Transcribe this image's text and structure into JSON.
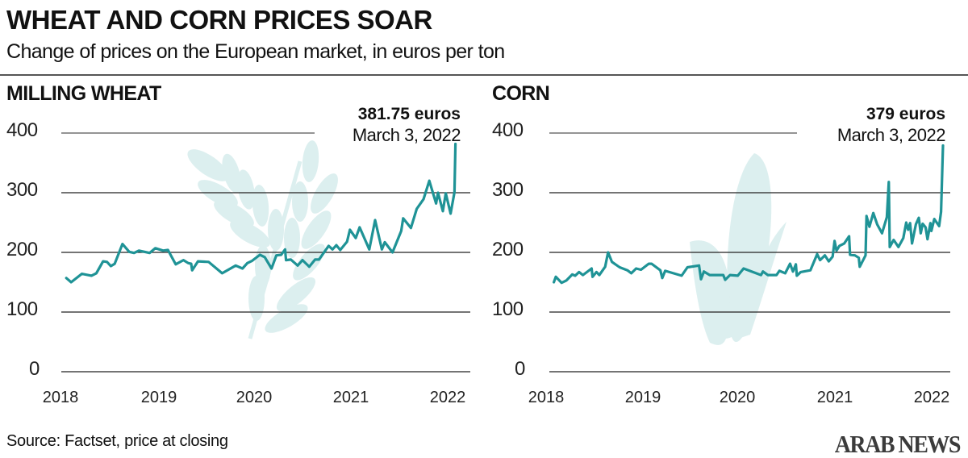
{
  "header": {
    "title": "WHEAT AND CORN PRICES SOAR",
    "subtitle": "Change of prices on the European market, in euros per ton"
  },
  "footer": {
    "source": "Source: Factset, price at closing",
    "logo": "ARAB NEWS"
  },
  "colors": {
    "line": "#1f9396",
    "watermark": "#dcefef",
    "grid": "#222222"
  },
  "chart_data": [
    {
      "type": "line",
      "title": "MILLING WHEAT",
      "ylabel": "euros per ton",
      "ylim": [
        0,
        400
      ],
      "yticks": [
        "0",
        "100",
        "200",
        "300",
        "400"
      ],
      "xticks": [
        "2018",
        "2019",
        "2020",
        "2021",
        "2022"
      ],
      "x_unit": "years since start of 2018",
      "annotation": {
        "value": "381.75 euros",
        "date": "March 3, 2022"
      },
      "watermark_icon": "wheat-icon",
      "points": [
        [
          0.06,
          157
        ],
        [
          0.11,
          150
        ],
        [
          0.22,
          164
        ],
        [
          0.32,
          161
        ],
        [
          0.37,
          165
        ],
        [
          0.44,
          185
        ],
        [
          0.48,
          184
        ],
        [
          0.52,
          177
        ],
        [
          0.56,
          181
        ],
        [
          0.64,
          214
        ],
        [
          0.71,
          201
        ],
        [
          0.76,
          199
        ],
        [
          0.81,
          203
        ],
        [
          0.92,
          199
        ],
        [
          0.98,
          207
        ],
        [
          1.06,
          203
        ],
        [
          1.11,
          204
        ],
        [
          1.19,
          180
        ],
        [
          1.27,
          187
        ],
        [
          1.32,
          182
        ],
        [
          1.35,
          181
        ],
        [
          1.36,
          170
        ],
        [
          1.42,
          185
        ],
        [
          1.53,
          184
        ],
        [
          1.67,
          165
        ],
        [
          1.81,
          178
        ],
        [
          1.88,
          173
        ],
        [
          1.93,
          182
        ],
        [
          1.98,
          186
        ],
        [
          2.06,
          196
        ],
        [
          2.11,
          192
        ],
        [
          2.18,
          173
        ],
        [
          2.23,
          195
        ],
        [
          2.28,
          196
        ],
        [
          2.32,
          205
        ],
        [
          2.33,
          187
        ],
        [
          2.38,
          188
        ],
        [
          2.45,
          178
        ],
        [
          2.5,
          187
        ],
        [
          2.57,
          176
        ],
        [
          2.63,
          188
        ],
        [
          2.67,
          188
        ],
        [
          2.77,
          211
        ],
        [
          2.81,
          205
        ],
        [
          2.85,
          212
        ],
        [
          2.89,
          204
        ],
        [
          2.96,
          218
        ],
        [
          2.99,
          238
        ],
        [
          3.05,
          224
        ],
        [
          3.09,
          242
        ],
        [
          3.19,
          205
        ],
        [
          3.25,
          254
        ],
        [
          3.32,
          205
        ],
        [
          3.35,
          217
        ],
        [
          3.43,
          200
        ],
        [
          3.52,
          236
        ],
        [
          3.54,
          257
        ],
        [
          3.62,
          241
        ],
        [
          3.68,
          273
        ],
        [
          3.75,
          289
        ],
        [
          3.81,
          320
        ],
        [
          3.88,
          282
        ],
        [
          3.9,
          300
        ],
        [
          3.95,
          269
        ],
        [
          3.98,
          299
        ],
        [
          4.03,
          265
        ],
        [
          4.07,
          301
        ],
        [
          4.08,
          381.75
        ]
      ]
    },
    {
      "type": "line",
      "title": "CORN",
      "ylabel": "euros per ton",
      "ylim": [
        0,
        400
      ],
      "yticks": [
        "0",
        "100",
        "200",
        "300",
        "400"
      ],
      "xticks": [
        "2018",
        "2019",
        "2020",
        "2021",
        "2022"
      ],
      "x_unit": "years since start of 2018",
      "annotation": {
        "value": "379 euros",
        "date": "March 3, 2022"
      },
      "watermark_icon": "corn-icon",
      "points": [
        [
          0.08,
          150
        ],
        [
          0.1,
          159
        ],
        [
          0.16,
          149
        ],
        [
          0.21,
          153
        ],
        [
          0.27,
          163
        ],
        [
          0.3,
          161
        ],
        [
          0.34,
          167
        ],
        [
          0.38,
          162
        ],
        [
          0.47,
          173
        ],
        [
          0.48,
          159
        ],
        [
          0.52,
          167
        ],
        [
          0.55,
          162
        ],
        [
          0.61,
          176
        ],
        [
          0.64,
          200
        ],
        [
          0.68,
          184
        ],
        [
          0.76,
          175
        ],
        [
          0.84,
          170
        ],
        [
          0.88,
          165
        ],
        [
          0.93,
          173
        ],
        [
          0.98,
          171
        ],
        [
          1.06,
          181
        ],
        [
          1.09,
          181
        ],
        [
          1.18,
          170
        ],
        [
          1.2,
          157
        ],
        [
          1.23,
          169
        ],
        [
          1.4,
          161
        ],
        [
          1.46,
          175
        ],
        [
          1.58,
          178
        ],
        [
          1.6,
          155
        ],
        [
          1.63,
          168
        ],
        [
          1.69,
          162
        ],
        [
          1.83,
          162
        ],
        [
          1.85,
          154
        ],
        [
          1.9,
          162
        ],
        [
          1.98,
          161
        ],
        [
          2.04,
          173
        ],
        [
          2.22,
          162
        ],
        [
          2.24,
          168
        ],
        [
          2.29,
          162
        ],
        [
          2.38,
          162
        ],
        [
          2.41,
          169
        ],
        [
          2.47,
          165
        ],
        [
          2.52,
          181
        ],
        [
          2.55,
          168
        ],
        [
          2.58,
          180
        ],
        [
          2.59,
          161
        ],
        [
          2.63,
          167
        ],
        [
          2.73,
          170
        ],
        [
          2.8,
          197
        ],
        [
          2.83,
          187
        ],
        [
          2.88,
          195
        ],
        [
          2.92,
          185
        ],
        [
          2.96,
          193
        ],
        [
          2.98,
          219
        ],
        [
          3.0,
          203
        ],
        [
          3.03,
          211
        ],
        [
          3.08,
          215
        ],
        [
          3.13,
          227
        ],
        [
          3.14,
          196
        ],
        [
          3.19,
          195
        ],
        [
          3.23,
          191
        ],
        [
          3.24,
          176
        ],
        [
          3.3,
          195
        ],
        [
          3.31,
          261
        ],
        [
          3.34,
          243
        ],
        [
          3.38,
          266
        ],
        [
          3.42,
          247
        ],
        [
          3.47,
          232
        ],
        [
          3.52,
          259
        ],
        [
          3.54,
          318
        ],
        [
          3.55,
          209
        ],
        [
          3.59,
          221
        ],
        [
          3.64,
          209
        ],
        [
          3.69,
          224
        ],
        [
          3.72,
          250
        ],
        [
          3.74,
          238
        ],
        [
          3.76,
          249
        ],
        [
          3.78,
          215
        ],
        [
          3.82,
          247
        ],
        [
          3.85,
          258
        ],
        [
          3.87,
          232
        ],
        [
          3.89,
          248
        ],
        [
          3.92,
          242
        ],
        [
          3.94,
          222
        ],
        [
          3.97,
          249
        ],
        [
          3.98,
          236
        ],
        [
          4.01,
          256
        ],
        [
          4.06,
          244
        ],
        [
          4.08,
          268
        ],
        [
          4.1,
          379
        ]
      ]
    }
  ]
}
